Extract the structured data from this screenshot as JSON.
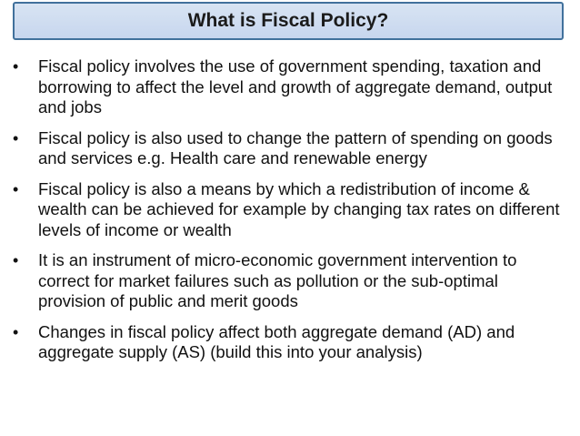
{
  "slide": {
    "title": "What is Fiscal Policy?",
    "bullet_glyph": "•",
    "bullets": [
      "Fiscal policy involves the use of government spending, taxation and borrowing to affect the level and growth of aggregate demand, output and jobs",
      "Fiscal policy is also used to change the pattern of spending on goods and services e.g. Health care and renewable energy",
      "Fiscal policy is also a means by which a redistribution of income & wealth can be achieved for example by changing tax rates on different levels of income or wealth",
      "It is an instrument of micro-economic government intervention to correct for market failures such as pollution or the sub-optimal provision of public and merit goods",
      "Changes in fiscal policy affect both aggregate demand (AD) and aggregate supply (AS) (build this into your analysis)"
    ]
  },
  "colors": {
    "title_border": "#41719c",
    "title_fill": "#d8e4f3",
    "text": "#111111"
  }
}
